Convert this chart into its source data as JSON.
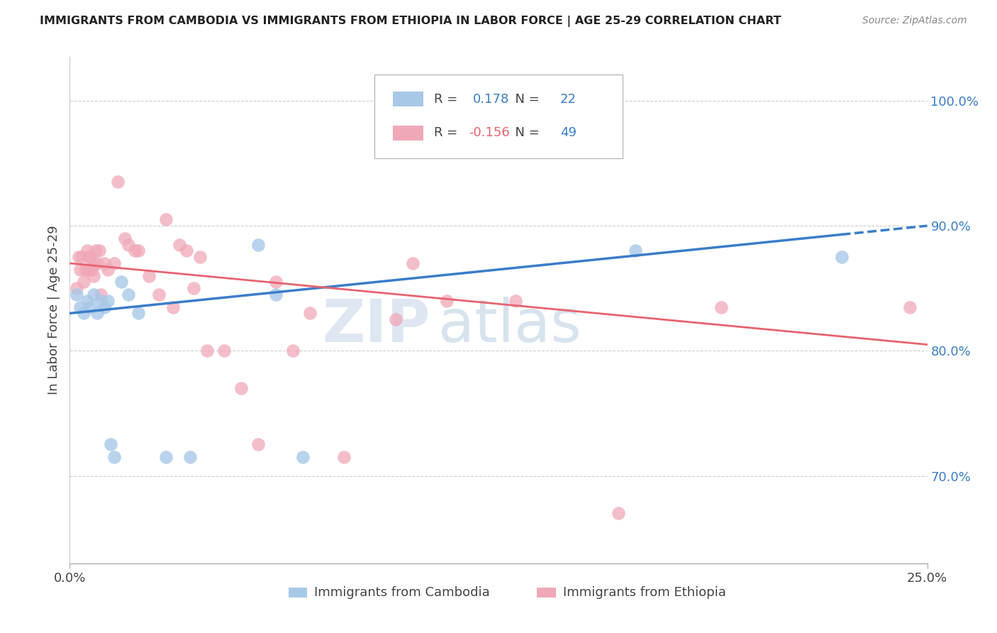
{
  "title": "IMMIGRANTS FROM CAMBODIA VS IMMIGRANTS FROM ETHIOPIA IN LABOR FORCE | AGE 25-29 CORRELATION CHART",
  "source": "Source: ZipAtlas.com",
  "ylabel": "In Labor Force | Age 25-29",
  "ylabel_right_ticks": [
    70.0,
    80.0,
    90.0,
    100.0
  ],
  "xmin": 0.0,
  "xmax": 25.0,
  "ymin": 63.0,
  "ymax": 103.5,
  "legend_R_cambodia": "0.178",
  "legend_N_cambodia": "22",
  "legend_R_ethiopia": "-0.156",
  "legend_N_ethiopia": "49",
  "cambodia_color": "#a8c8e8",
  "ethiopia_color": "#f0a8b8",
  "trendline_blue": "#3a7dc9",
  "trendline_pink": "#e8636f",
  "cambodia_x": [
    0.2,
    0.3,
    0.4,
    0.5,
    0.6,
    0.7,
    0.8,
    0.9,
    1.0,
    1.1,
    1.2,
    1.3,
    1.5,
    1.7,
    2.0,
    2.8,
    3.5,
    5.5,
    6.0,
    6.8,
    16.5,
    22.5
  ],
  "cambodia_y": [
    84.5,
    83.5,
    83.0,
    84.0,
    83.5,
    84.5,
    83.0,
    84.0,
    83.5,
    84.0,
    72.5,
    71.5,
    85.5,
    84.5,
    83.0,
    71.5,
    71.5,
    88.5,
    84.5,
    71.5,
    88.0,
    87.5
  ],
  "ethiopia_x": [
    0.2,
    0.25,
    0.3,
    0.35,
    0.4,
    0.45,
    0.5,
    0.5,
    0.55,
    0.6,
    0.6,
    0.65,
    0.7,
    0.7,
    0.75,
    0.8,
    0.85,
    0.9,
    1.0,
    1.1,
    1.3,
    1.4,
    1.6,
    1.7,
    1.9,
    2.0,
    2.3,
    2.6,
    2.8,
    3.0,
    3.2,
    3.4,
    3.6,
    3.8,
    4.0,
    4.5,
    5.0,
    5.5,
    6.0,
    6.5,
    7.0,
    8.0,
    9.5,
    10.0,
    11.0,
    13.0,
    16.0,
    19.0,
    24.5
  ],
  "ethiopia_y": [
    85.0,
    87.5,
    86.5,
    87.5,
    85.5,
    86.5,
    88.0,
    86.5,
    87.5,
    86.5,
    87.5,
    86.5,
    87.0,
    86.0,
    88.0,
    87.0,
    88.0,
    84.5,
    87.0,
    86.5,
    87.0,
    93.5,
    89.0,
    88.5,
    88.0,
    88.0,
    86.0,
    84.5,
    90.5,
    83.5,
    88.5,
    88.0,
    85.0,
    87.5,
    80.0,
    80.0,
    77.0,
    72.5,
    85.5,
    80.0,
    83.0,
    71.5,
    82.5,
    87.0,
    84.0,
    84.0,
    67.0,
    83.5,
    83.5
  ],
  "trendline_cambodia_y0": 83.0,
  "trendline_cambodia_y1": 90.0,
  "trendline_ethiopia_y0": 87.0,
  "trendline_ethiopia_y1": 80.5,
  "solid_end_x": 22.5,
  "watermark_zip_color": "#c8d8e8",
  "watermark_atlas_color": "#b0c8dc"
}
